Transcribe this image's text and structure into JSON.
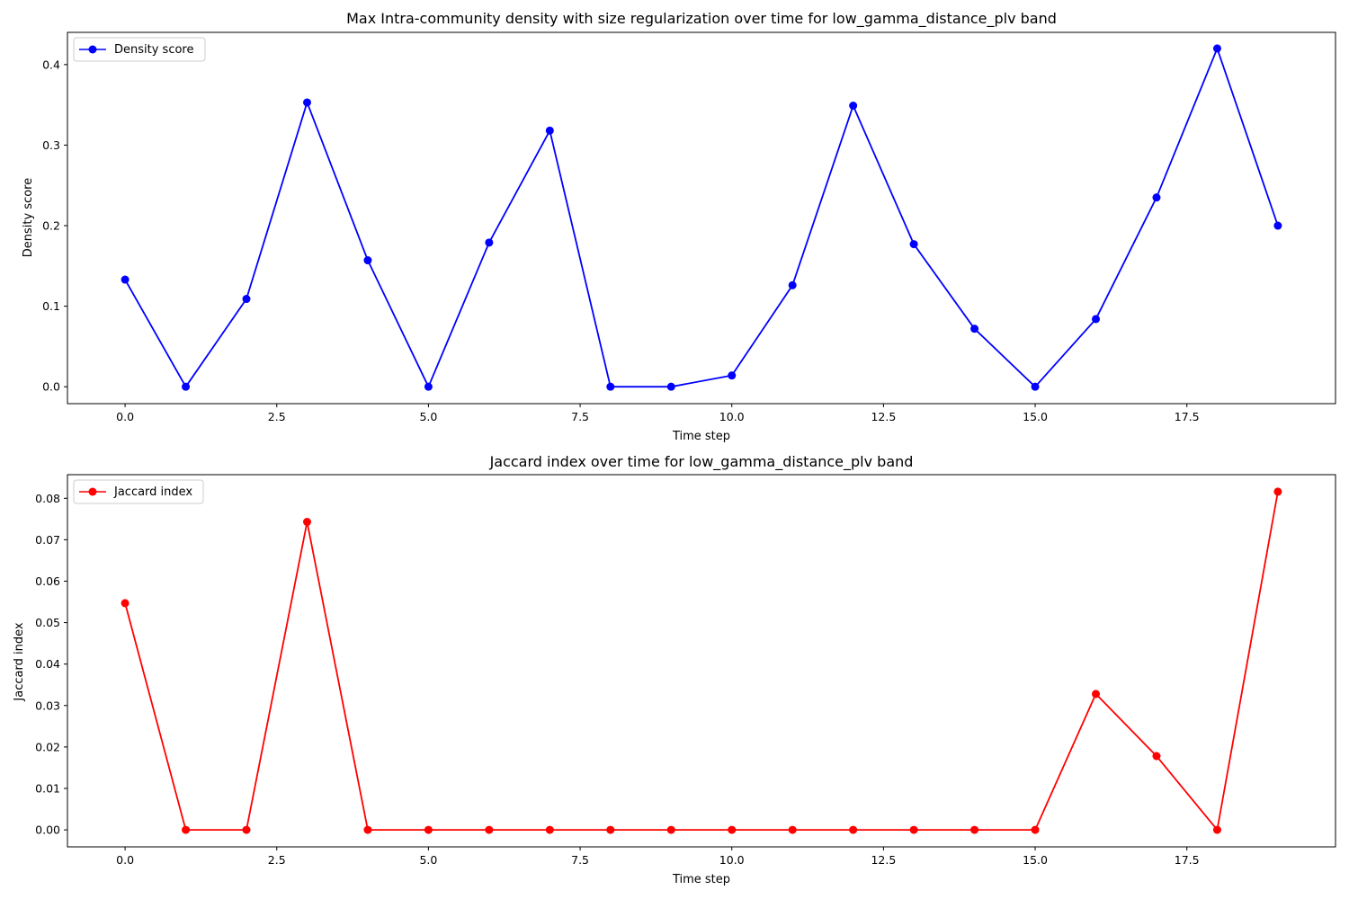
{
  "chart_data": [
    {
      "type": "line",
      "title": "Max Intra-community density with size regularization over time for low_gamma_distance_plv band",
      "xlabel": "Time step",
      "ylabel": "Density score",
      "xlim": [
        -0.95,
        19.95
      ],
      "ylim": [
        -0.021,
        0.44
      ],
      "xticks": [
        0.0,
        2.5,
        5.0,
        7.5,
        10.0,
        12.5,
        15.0,
        17.5
      ],
      "xtick_labels": [
        "0.0",
        "2.5",
        "5.0",
        "7.5",
        "10.0",
        "12.5",
        "15.0",
        "17.5"
      ],
      "yticks": [
        0.0,
        0.1,
        0.2,
        0.3,
        0.4
      ],
      "ytick_labels": [
        "0.0",
        "0.1",
        "0.2",
        "0.3",
        "0.4"
      ],
      "legend_position": "upper-left",
      "grid": false,
      "series": [
        {
          "name": "Density score",
          "color": "#0000ff",
          "marker": "circle",
          "x": [
            0,
            1,
            2,
            3,
            4,
            5,
            6,
            7,
            8,
            9,
            10,
            11,
            12,
            13,
            14,
            15,
            16,
            17,
            18,
            19
          ],
          "values": [
            0.133,
            0.0,
            0.109,
            0.353,
            0.157,
            0.0,
            0.179,
            0.318,
            0.0,
            0.0,
            0.014,
            0.126,
            0.349,
            0.177,
            0.072,
            0.0,
            0.084,
            0.235,
            0.42,
            0.2
          ]
        }
      ]
    },
    {
      "type": "line",
      "title": "Jaccard index over time for low_gamma_distance_plv band",
      "xlabel": "Time step",
      "ylabel": "Jaccard index",
      "xlim": [
        -0.95,
        19.95
      ],
      "ylim": [
        -0.0041,
        0.0857
      ],
      "xticks": [
        0.0,
        2.5,
        5.0,
        7.5,
        10.0,
        12.5,
        15.0,
        17.5
      ],
      "xtick_labels": [
        "0.0",
        "2.5",
        "5.0",
        "7.5",
        "10.0",
        "12.5",
        "15.0",
        "17.5"
      ],
      "yticks": [
        0.0,
        0.01,
        0.02,
        0.03,
        0.04,
        0.05,
        0.06,
        0.07,
        0.08
      ],
      "ytick_labels": [
        "0.00",
        "0.01",
        "0.02",
        "0.03",
        "0.04",
        "0.05",
        "0.06",
        "0.07",
        "0.08"
      ],
      "legend_position": "upper-left",
      "grid": false,
      "series": [
        {
          "name": "Jaccard index",
          "color": "#ff0000",
          "marker": "circle",
          "x": [
            0,
            1,
            2,
            3,
            4,
            5,
            6,
            7,
            8,
            9,
            10,
            11,
            12,
            13,
            14,
            15,
            16,
            17,
            18,
            19
          ],
          "values": [
            0.0547,
            0.0,
            0.0,
            0.0743,
            0.0,
            0.0,
            0.0,
            0.0,
            0.0,
            0.0,
            0.0,
            0.0,
            0.0,
            0.0,
            0.0,
            0.0,
            0.0328,
            0.0178,
            0.0,
            0.0816
          ]
        }
      ]
    }
  ]
}
